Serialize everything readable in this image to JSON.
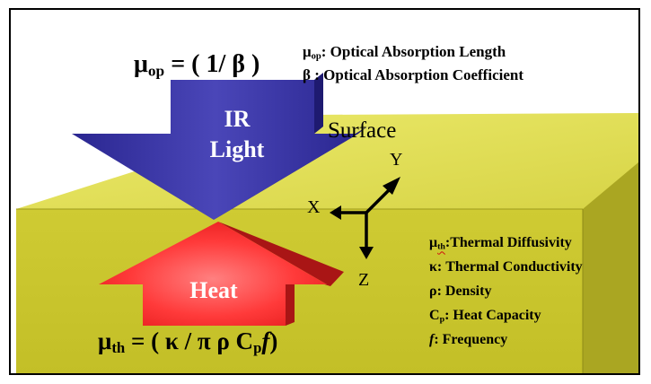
{
  "formulas": {
    "optical": {
      "mu": "μ",
      "sub": "op",
      "rest": " = ( 1/ β )"
    },
    "thermal": {
      "mu": "μ",
      "sub": "th",
      "rest": " = ( κ / π ρ C",
      "sub2": "p",
      "f": "f",
      "close": ")"
    }
  },
  "optical_legend": {
    "line1": {
      "sym": "μ",
      "sub": "op",
      "text": ": Optical Absorption Length"
    },
    "line2": {
      "text": "β : Optical Absorption Coefficient"
    }
  },
  "arrows": {
    "ir_line1": "IR",
    "ir_line2": "Light",
    "heat": "Heat"
  },
  "block": {
    "surface_label": "Surface"
  },
  "axes": {
    "x": "X",
    "y": "Y",
    "z": "Z"
  },
  "thermal_legend": {
    "line1": {
      "sym": "μ",
      "sub": "th",
      "text": ":Thermal Diffusivity"
    },
    "line2": {
      "text": "κ: Thermal Conductivity"
    },
    "line3": {
      "text": "ρ: Density"
    },
    "line4": {
      "sym": "C",
      "sub": "p",
      "text": ": Heat Capacity"
    },
    "line5": {
      "sym": "f",
      "text": ": Frequency"
    }
  },
  "colors": {
    "block_front": "#c9c52e",
    "block_top": "#e3e05a",
    "block_right": "#a6a320",
    "ir_arrow": "#3a36a0",
    "heat_arrow": "#ff3a3a"
  }
}
